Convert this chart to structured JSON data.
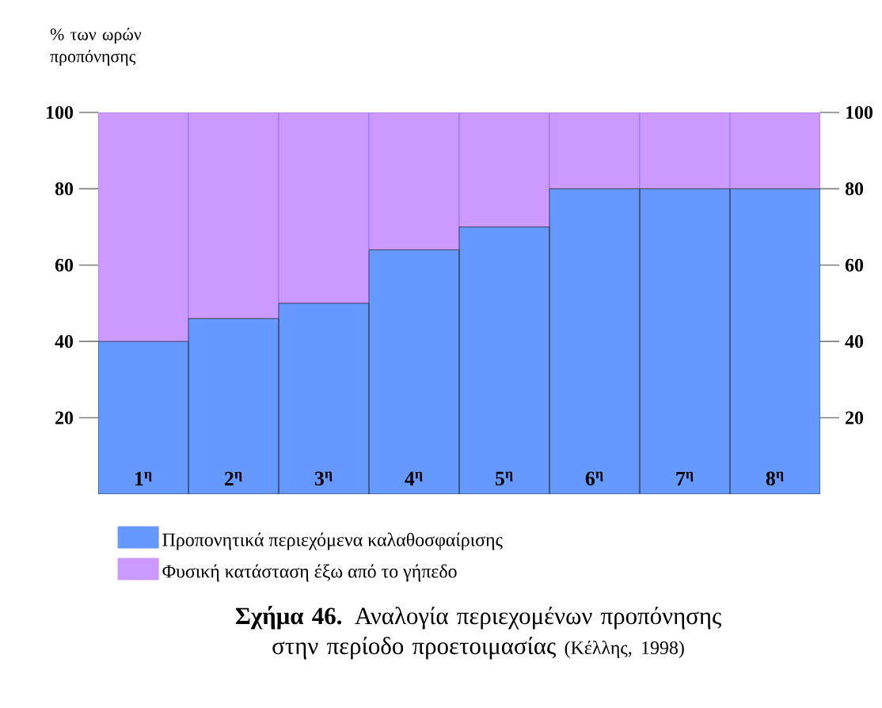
{
  "chart_data": {
    "type": "bar",
    "stacked": true,
    "title": "**Σχήμα 46.** Αναλογία περιεχομένων προπόνησης στην περίοδο προετοιμασίας",
    "annotations": [
      "(Κέλλης, 1998)"
    ],
    "ylabel": "% των ωρών προπόνησης",
    "categories": [
      "1$^{η}$",
      "2$^{η}$",
      "3$^{η}$",
      "4$^{η}$",
      "5$^{η}$",
      "6$^{η}$",
      "7$^{η}$",
      "8$^{η}$"
    ],
    "series": [
      {
        "name": "Προπονητικά περιεχόμενα καλαθοσφαίρισης",
        "color": "#6699ff",
        "values": [
          40,
          46,
          50,
          64,
          70,
          80,
          80,
          80
        ]
      },
      {
        "name": "Φυσική κατάσταση έξω από το γήπεδο",
        "color": "#cc99ff",
        "values": [
          60,
          54,
          50,
          36,
          30,
          20,
          20,
          20
        ]
      }
    ],
    "ylim": [
      0,
      100
    ],
    "yticks": [
      20,
      40,
      60,
      80,
      100
    ],
    "y2lim": [
      0,
      100
    ],
    "y2ticks": [
      20,
      40,
      60,
      80,
      100
    ],
    "legend": "bottom",
    "grid": false
  }
}
